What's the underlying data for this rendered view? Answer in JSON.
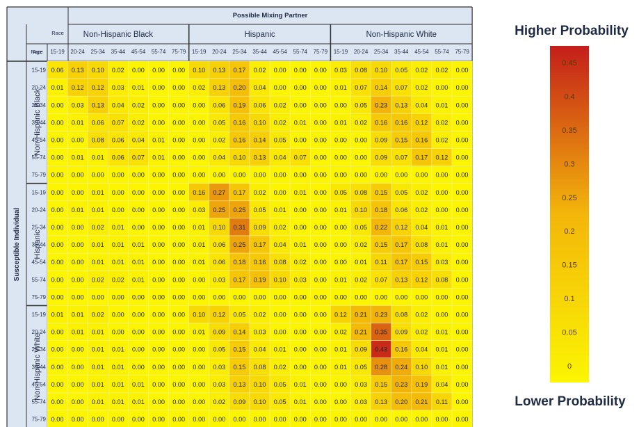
{
  "chart_data": {
    "type": "heatmap",
    "title": "Possible Mixing Partner",
    "row_title": "Susceptible Individual",
    "race_header": "Race",
    "age_header": "Age",
    "races": [
      "Non-Hispanic Black",
      "Hispanic",
      "Non-Hispanic White"
    ],
    "ages": [
      "15-19",
      "20-24",
      "25-34",
      "35-44",
      "45-54",
      "55-74",
      "75-79"
    ],
    "values": [
      [
        0.06,
        0.13,
        0.1,
        0.02,
        0.0,
        0.0,
        0.0,
        0.1,
        0.13,
        0.17,
        0.02,
        0.0,
        0.0,
        0.0,
        0.03,
        0.08,
        0.1,
        0.05,
        0.02,
        0.02,
        0.0
      ],
      [
        0.01,
        0.12,
        0.12,
        0.03,
        0.01,
        0.0,
        0.0,
        0.02,
        0.13,
        0.2,
        0.04,
        0.0,
        0.0,
        0.0,
        0.01,
        0.07,
        0.14,
        0.07,
        0.02,
        0.0,
        0.0
      ],
      [
        0.0,
        0.03,
        0.13,
        0.04,
        0.02,
        0.0,
        0.0,
        0.0,
        0.06,
        0.19,
        0.06,
        0.02,
        0.0,
        0.0,
        0.0,
        0.05,
        0.23,
        0.13,
        0.04,
        0.01,
        0.0
      ],
      [
        0.0,
        0.01,
        0.06,
        0.07,
        0.02,
        0.0,
        0.0,
        0.0,
        0.05,
        0.16,
        0.1,
        0.02,
        0.01,
        0.0,
        0.01,
        0.02,
        0.16,
        0.16,
        0.12,
        0.02,
        0.0
      ],
      [
        0.0,
        0.0,
        0.08,
        0.06,
        0.04,
        0.01,
        0.0,
        0.0,
        0.02,
        0.16,
        0.14,
        0.05,
        0.0,
        0.0,
        0.0,
        0.0,
        0.09,
        0.15,
        0.16,
        0.02,
        0.0
      ],
      [
        0.0,
        0.01,
        0.01,
        0.06,
        0.07,
        0.01,
        0.0,
        0.0,
        0.04,
        0.1,
        0.13,
        0.04,
        0.07,
        0.0,
        0.0,
        0.0,
        0.09,
        0.07,
        0.17,
        0.12,
        0.0
      ],
      [
        0.0,
        0.0,
        0.0,
        0.0,
        0.0,
        0.0,
        0.0,
        0.0,
        0.0,
        0.0,
        0.0,
        0.0,
        0.0,
        0.0,
        0.0,
        0.0,
        0.0,
        0.0,
        0.0,
        0.0,
        0.0
      ],
      [
        0.0,
        0.0,
        0.01,
        0.0,
        0.0,
        0.0,
        0.0,
        0.16,
        0.27,
        0.17,
        0.02,
        0.0,
        0.01,
        0.0,
        0.05,
        0.08,
        0.15,
        0.05,
        0.02,
        0.0,
        0.0
      ],
      [
        0.0,
        0.01,
        0.01,
        0.0,
        0.0,
        0.0,
        0.0,
        0.03,
        0.25,
        0.25,
        0.05,
        0.01,
        0.0,
        0.0,
        0.01,
        0.1,
        0.18,
        0.06,
        0.02,
        0.0,
        0.0
      ],
      [
        0.0,
        0.0,
        0.02,
        0.01,
        0.0,
        0.0,
        0.0,
        0.01,
        0.1,
        0.31,
        0.09,
        0.02,
        0.0,
        0.0,
        0.0,
        0.05,
        0.22,
        0.12,
        0.04,
        0.01,
        0.0
      ],
      [
        0.0,
        0.0,
        0.01,
        0.01,
        0.01,
        0.0,
        0.0,
        0.01,
        0.06,
        0.25,
        0.17,
        0.04,
        0.01,
        0.0,
        0.0,
        0.02,
        0.15,
        0.17,
        0.08,
        0.01,
        0.0
      ],
      [
        0.0,
        0.0,
        0.01,
        0.01,
        0.01,
        0.0,
        0.0,
        0.01,
        0.06,
        0.18,
        0.16,
        0.08,
        0.02,
        0.0,
        0.0,
        0.01,
        0.11,
        0.17,
        0.15,
        0.03,
        0.0
      ],
      [
        0.0,
        0.0,
        0.02,
        0.02,
        0.01,
        0.0,
        0.0,
        0.0,
        0.03,
        0.17,
        0.19,
        0.1,
        0.03,
        0.0,
        0.01,
        0.02,
        0.07,
        0.13,
        0.12,
        0.08,
        0.0
      ],
      [
        0.0,
        0.0,
        0.0,
        0.0,
        0.0,
        0.0,
        0.0,
        0.0,
        0.0,
        0.0,
        0.0,
        0.0,
        0.0,
        0.0,
        0.0,
        0.0,
        0.0,
        0.0,
        0.0,
        0.0,
        0.0
      ],
      [
        0.01,
        0.01,
        0.02,
        0.0,
        0.0,
        0.0,
        0.0,
        0.1,
        0.12,
        0.05,
        0.02,
        0.0,
        0.0,
        0.0,
        0.12,
        0.21,
        0.23,
        0.08,
        0.02,
        0.0,
        0.0
      ],
      [
        0.0,
        0.01,
        0.01,
        0.0,
        0.0,
        0.0,
        0.0,
        0.01,
        0.09,
        0.14,
        0.03,
        0.0,
        0.0,
        0.0,
        0.02,
        0.21,
        0.35,
        0.09,
        0.02,
        0.01,
        0.0
      ],
      [
        0.0,
        0.0,
        0.01,
        0.01,
        0.0,
        0.0,
        0.0,
        0.0,
        0.05,
        0.15,
        0.04,
        0.01,
        0.0,
        0.0,
        0.01,
        0.09,
        0.43,
        0.16,
        0.04,
        0.01,
        0.0
      ],
      [
        0.0,
        0.0,
        0.01,
        0.01,
        0.0,
        0.0,
        0.0,
        0.0,
        0.03,
        0.15,
        0.08,
        0.02,
        0.0,
        0.0,
        0.01,
        0.05,
        0.28,
        0.24,
        0.1,
        0.01,
        0.0
      ],
      [
        0.0,
        0.0,
        0.01,
        0.01,
        0.01,
        0.0,
        0.0,
        0.0,
        0.03,
        0.13,
        0.1,
        0.05,
        0.01,
        0.0,
        0.0,
        0.03,
        0.15,
        0.23,
        0.19,
        0.04,
        0.0
      ],
      [
        0.0,
        0.0,
        0.01,
        0.01,
        0.01,
        0.0,
        0.0,
        0.0,
        0.02,
        0.09,
        0.1,
        0.05,
        0.01,
        0.0,
        0.0,
        0.03,
        0.13,
        0.2,
        0.21,
        0.11,
        0.0
      ],
      [
        0.0,
        0.0,
        0.0,
        0.0,
        0.0,
        0.0,
        0.0,
        0.0,
        0.0,
        0.0,
        0.0,
        0.0,
        0.0,
        0.0,
        0.0,
        0.0,
        0.0,
        0.0,
        0.0,
        0.0,
        0.0
      ]
    ],
    "legend": {
      "top_label": "Higher Probability",
      "bottom_label": "Lower Probability",
      "ticks": [
        "0.45",
        "0.4",
        "0.35",
        "0.3",
        "0.25",
        "0.2",
        "0.15",
        "0.1",
        "0.05",
        "0"
      ],
      "tick_values": [
        0.45,
        0.4,
        0.35,
        0.3,
        0.25,
        0.2,
        0.15,
        0.1,
        0.05,
        0
      ]
    },
    "colors": {
      "low": "#fbf502",
      "mid": "#f3b60a",
      "high": "#c41e1a",
      "header_fill": "#dce6f2",
      "border": "#333333"
    }
  }
}
